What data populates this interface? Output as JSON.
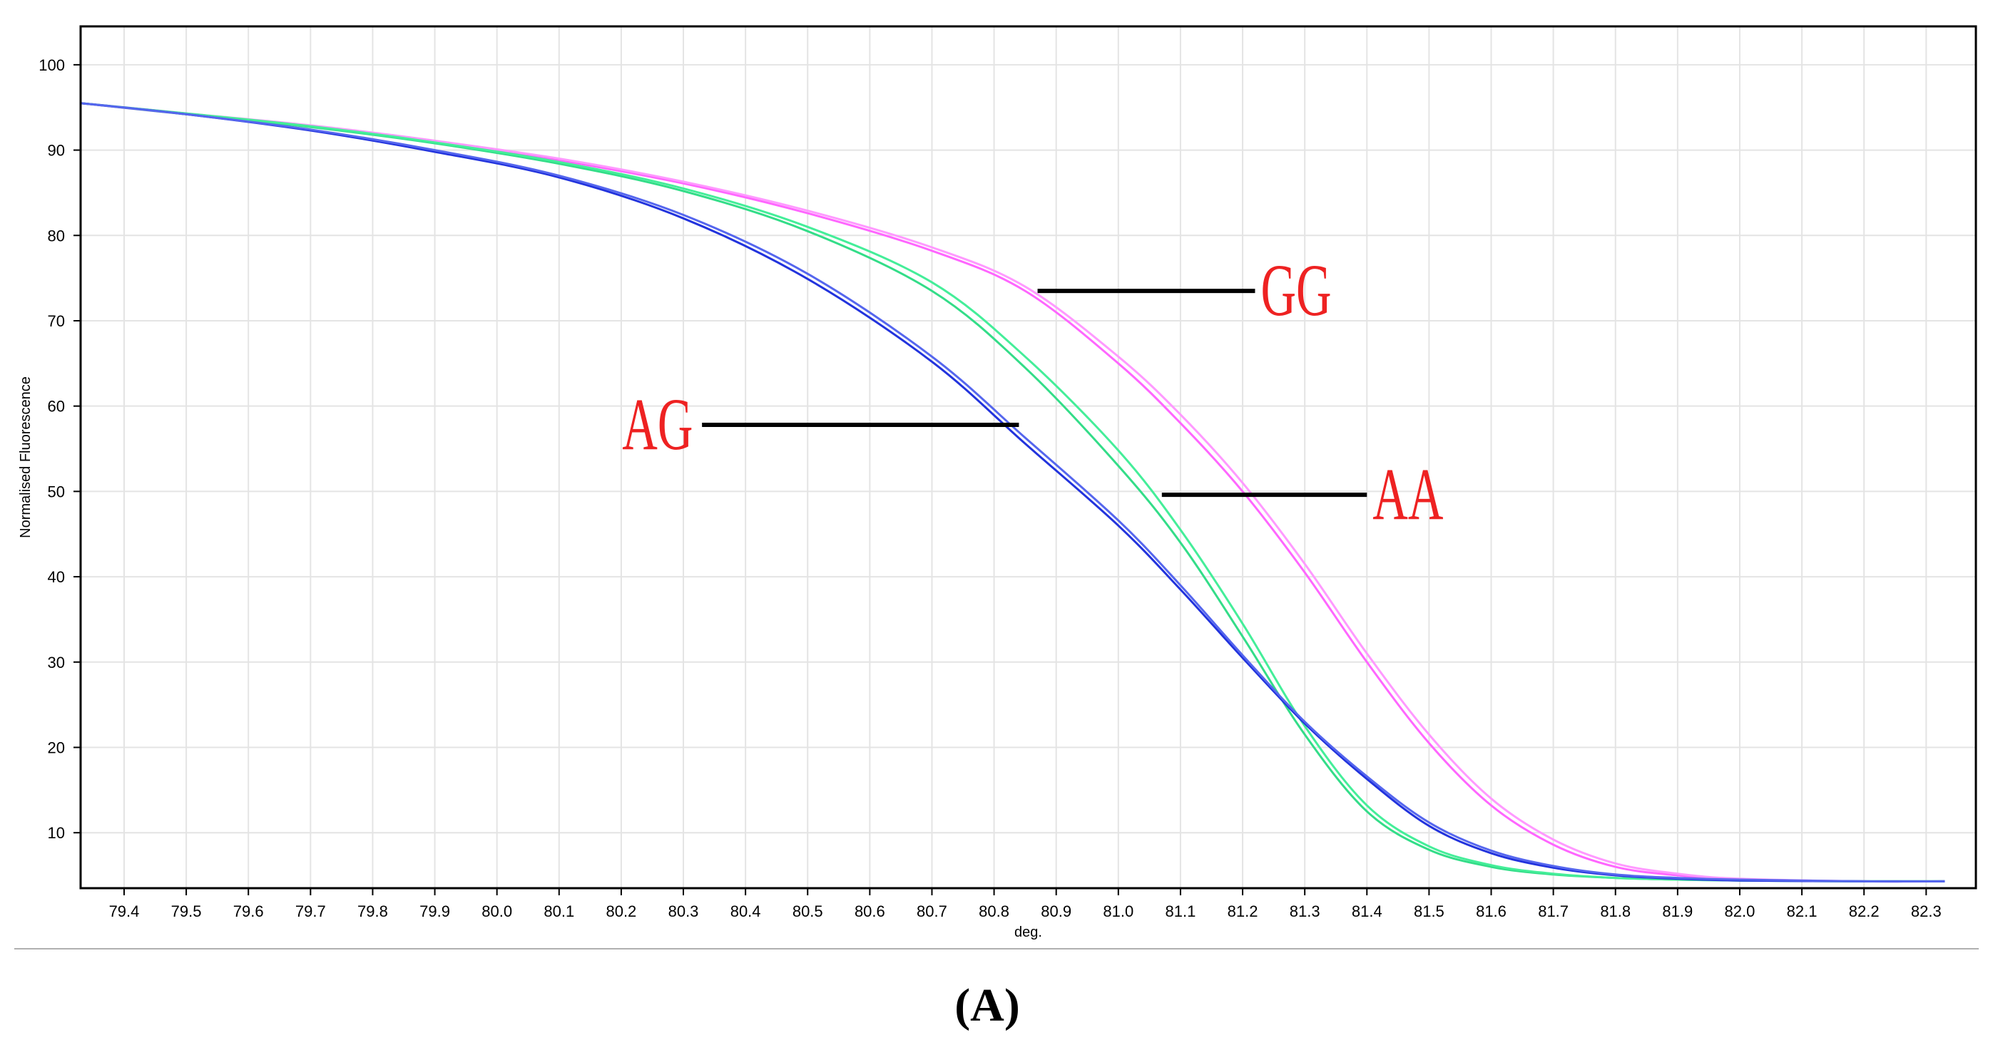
{
  "chart_data": {
    "type": "line",
    "xlabel": "deg.",
    "ylabel": "Normalised Fluorescence",
    "xlim": [
      79.33,
      82.38
    ],
    "ylim": [
      3.5,
      104.5
    ],
    "x_ticks": [
      79.4,
      79.5,
      79.6,
      79.7,
      79.8,
      79.9,
      80.0,
      80.1,
      80.2,
      80.3,
      80.4,
      80.5,
      80.6,
      80.7,
      80.8,
      80.9,
      81.0,
      81.1,
      81.2,
      81.3,
      81.4,
      81.5,
      81.6,
      81.7,
      81.8,
      81.9,
      82.0,
      82.1,
      82.2,
      82.3
    ],
    "x_tick_labels": [
      "79.4",
      "79.5",
      "79.6",
      "79.7",
      "79.8",
      "79.9",
      "80.0",
      "80.1",
      "80.2",
      "80.3",
      "80.4",
      "80.5",
      "80.6",
      "80.7",
      "80.8",
      "80.9",
      "81.0",
      "81.1",
      "81.2",
      "81.3",
      "81.4",
      "81.5",
      "81.6",
      "81.7",
      "81.8",
      "81.9",
      "82.0",
      "82.1",
      "82.2",
      "82.3"
    ],
    "y_ticks": [
      10,
      20,
      30,
      40,
      50,
      60,
      70,
      80,
      90,
      100
    ],
    "y_tick_labels": [
      "10",
      "20",
      "30",
      "40",
      "50",
      "60",
      "70",
      "80",
      "90",
      "100"
    ],
    "grid": true,
    "series": [
      {
        "color": "#ff66ff",
        "x": [
          79.33,
          79.5,
          79.7,
          79.9,
          80.1,
          80.3,
          80.5,
          80.7,
          80.85,
          81.0,
          81.1,
          81.2,
          81.3,
          81.4,
          81.5,
          81.6,
          81.7,
          81.8,
          81.9,
          82.0,
          82.2,
          82.33
        ],
        "y": [
          95.5,
          94.2,
          92.8,
          91.0,
          88.8,
          86.1,
          82.6,
          78.2,
          73.5,
          65.0,
          58.0,
          50.0,
          40.5,
          30.0,
          20.5,
          13.2,
          8.6,
          6.0,
          5.0,
          4.5,
          4.3,
          4.3
        ]
      },
      {
        "color": "#ff99ff",
        "x": [
          79.33,
          79.5,
          79.7,
          79.9,
          80.1,
          80.3,
          80.5,
          80.7,
          80.85,
          81.0,
          81.1,
          81.2,
          81.3,
          81.4,
          81.5,
          81.6,
          81.7,
          81.8,
          81.9,
          82.0,
          82.2,
          82.33
        ],
        "y": [
          95.5,
          94.3,
          92.9,
          91.1,
          89.0,
          86.3,
          82.9,
          78.6,
          74.0,
          65.8,
          59.0,
          51.0,
          41.5,
          31.0,
          21.5,
          14.0,
          9.2,
          6.4,
          5.2,
          4.6,
          4.3,
          4.3
        ]
      },
      {
        "color": "#33dd88",
        "x": [
          79.33,
          79.5,
          79.7,
          79.9,
          80.1,
          80.3,
          80.5,
          80.7,
          80.85,
          81.0,
          81.1,
          81.2,
          81.3,
          81.4,
          81.5,
          81.6,
          81.7,
          81.8,
          81.9,
          82.0,
          82.2,
          82.33
        ],
        "y": [
          95.5,
          94.2,
          92.7,
          90.8,
          88.4,
          85.2,
          80.5,
          73.5,
          64.5,
          53.0,
          44.0,
          33.0,
          21.5,
          12.5,
          8.0,
          6.0,
          5.1,
          4.7,
          4.5,
          4.4,
          4.3,
          4.3
        ]
      },
      {
        "color": "#44ee99",
        "x": [
          79.33,
          79.5,
          79.7,
          79.9,
          80.1,
          80.3,
          80.5,
          80.7,
          80.85,
          81.0,
          81.1,
          81.2,
          81.3,
          81.4,
          81.5,
          81.6,
          81.7,
          81.8,
          81.9,
          82.0,
          82.2,
          82.33
        ],
        "y": [
          95.5,
          94.3,
          92.8,
          90.9,
          88.6,
          85.5,
          81.0,
          74.5,
          65.8,
          54.8,
          45.5,
          34.5,
          22.5,
          13.2,
          8.4,
          6.2,
          5.2,
          4.7,
          4.5,
          4.4,
          4.3,
          4.3
        ]
      },
      {
        "color": "#2233dd",
        "x": [
          79.33,
          79.5,
          79.7,
          79.9,
          80.1,
          80.3,
          80.5,
          80.7,
          80.85,
          81.0,
          81.1,
          81.2,
          81.3,
          81.4,
          81.5,
          81.6,
          81.7,
          81.8,
          81.9,
          82.0,
          82.2,
          82.33
        ],
        "y": [
          95.5,
          94.2,
          92.3,
          89.8,
          86.8,
          82.0,
          74.9,
          65.2,
          55.6,
          46.0,
          38.5,
          30.5,
          22.8,
          16.3,
          10.8,
          7.6,
          5.9,
          5.0,
          4.6,
          4.4,
          4.3,
          4.3
        ]
      },
      {
        "color": "#5566ee",
        "x": [
          79.33,
          79.5,
          79.7,
          79.9,
          80.1,
          80.3,
          80.5,
          80.7,
          80.85,
          81.0,
          81.1,
          81.2,
          81.3,
          81.4,
          81.5,
          81.6,
          81.7,
          81.8,
          81.9,
          82.0,
          82.2,
          82.33
        ],
        "y": [
          95.5,
          94.2,
          92.4,
          90.0,
          87.0,
          82.4,
          75.5,
          65.8,
          56.3,
          46.6,
          39.0,
          30.8,
          23.0,
          16.6,
          11.2,
          7.9,
          6.1,
          5.1,
          4.7,
          4.5,
          4.3,
          4.3
        ]
      }
    ],
    "annotations": [
      {
        "text": "GG",
        "line_x": [
          80.87,
          81.22
        ],
        "line_y": 73.5,
        "label_x": 81.22,
        "label_y": 73.5,
        "anchor": "start"
      },
      {
        "text": "AG",
        "line_x": [
          80.33,
          80.84
        ],
        "line_y": 57.8,
        "label_x": 80.32,
        "label_y": 57.8,
        "anchor": "end"
      },
      {
        "text": "AA",
        "line_x": [
          81.07,
          81.4
        ],
        "line_y": 49.6,
        "label_x": 81.4,
        "label_y": 49.6,
        "anchor": "start"
      }
    ],
    "colors": {
      "grid": "#e4e4e4",
      "annotation_text": "#ee2222",
      "annotation_line": "#000000"
    }
  },
  "panel_label": "(A)"
}
